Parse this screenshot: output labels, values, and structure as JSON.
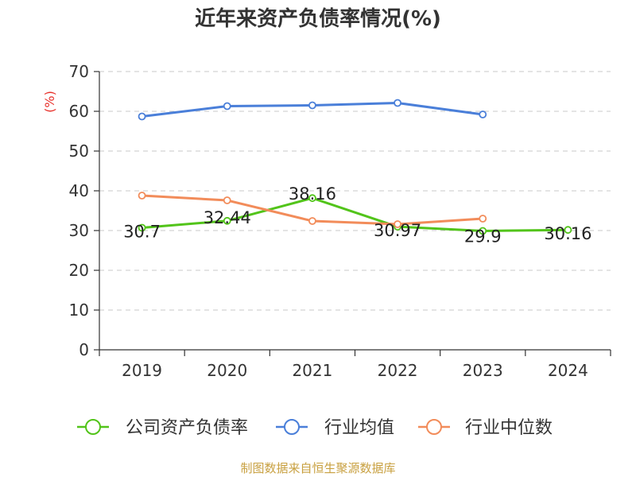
{
  "chart_data": {
    "type": "line",
    "title": "近年来资产负债率情况(%)",
    "ylabel": "(%)",
    "xlabel": "",
    "categories": [
      "2019",
      "2020",
      "2021",
      "2022",
      "2023",
      "2024"
    ],
    "ylim": [
      0,
      70
    ],
    "yticks": [
      0,
      10,
      20,
      30,
      40,
      50,
      60,
      70
    ],
    "grid": true,
    "legend_position": "bottom",
    "series": [
      {
        "name": "公司资产负债率",
        "color": "#52c41a",
        "values": [
          30.7,
          32.44,
          38.16,
          30.97,
          29.9,
          30.16
        ],
        "labels": [
          "30.7",
          "32.44",
          "38.16",
          "30.97",
          "29.9",
          "30.16"
        ],
        "show_labels": true
      },
      {
        "name": "行业均值",
        "color": "#4a7fd9",
        "values": [
          58.7,
          61.3,
          61.5,
          62.1,
          59.2,
          null
        ],
        "show_labels": false
      },
      {
        "name": "行业中位数",
        "color": "#f28c5a",
        "values": [
          38.8,
          37.6,
          32.4,
          31.6,
          33.0,
          null
        ],
        "show_labels": false
      }
    ]
  },
  "source": "制图数据来自恒生聚源数据库"
}
